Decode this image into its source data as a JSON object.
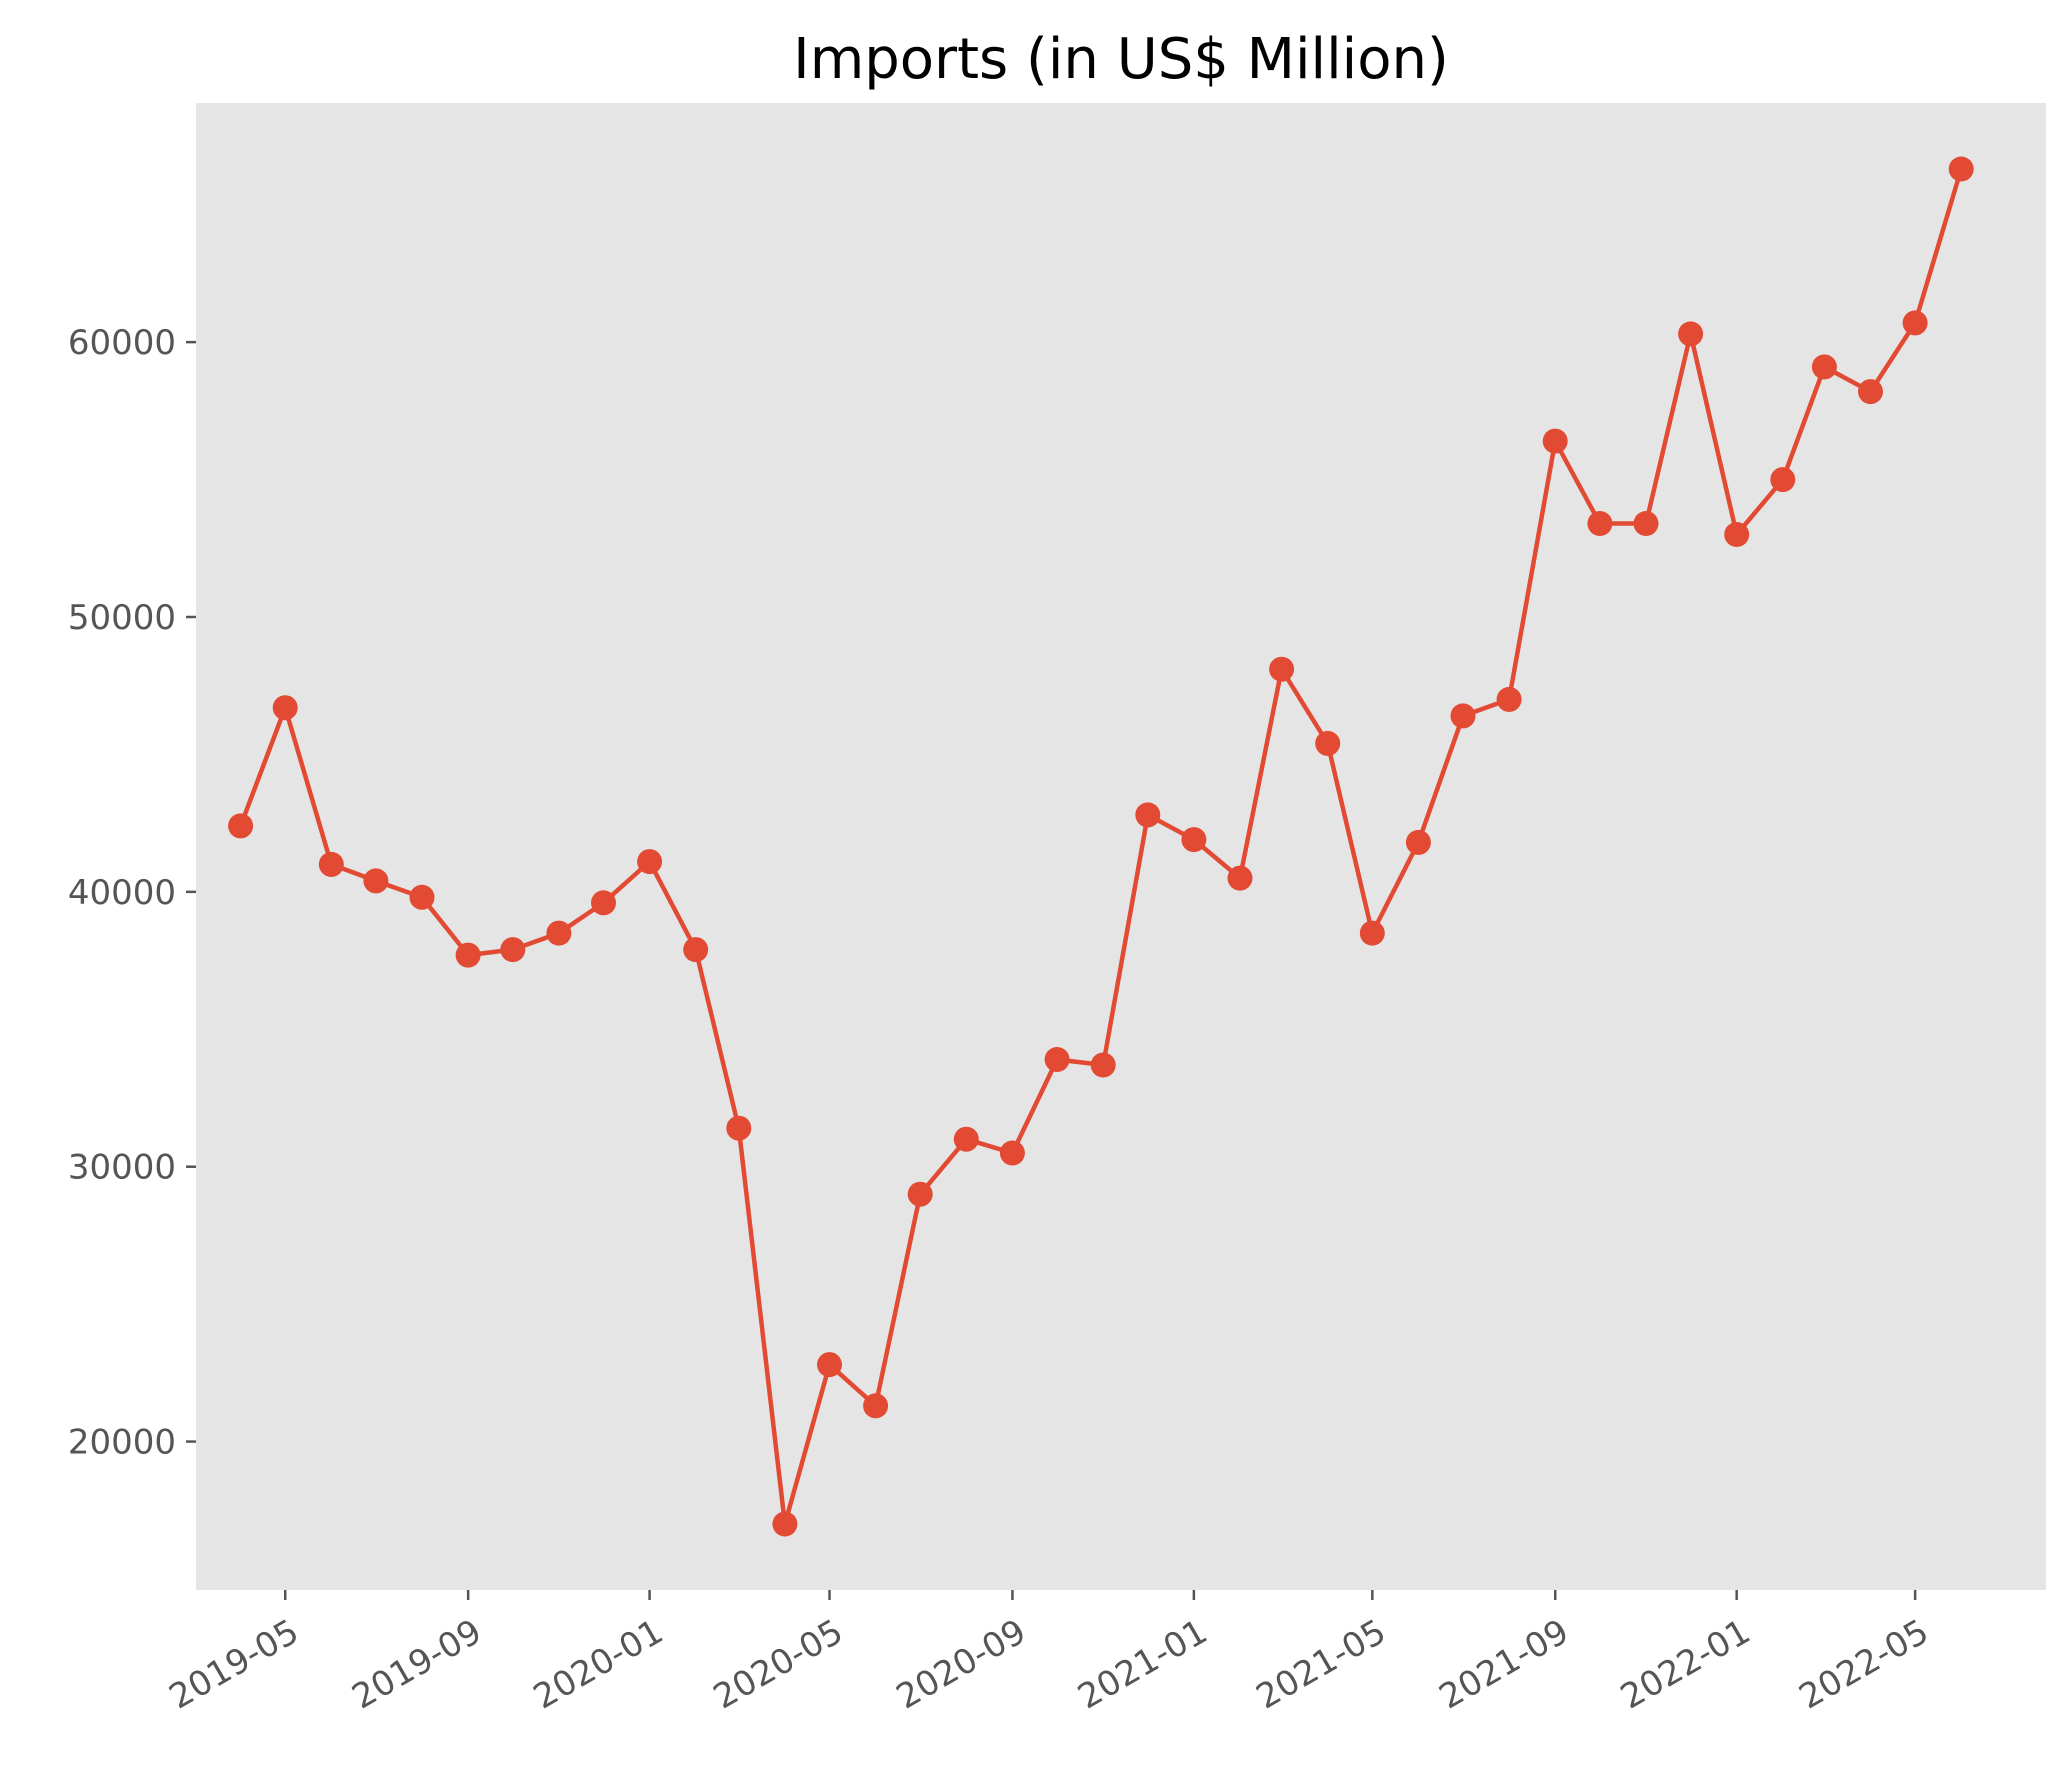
{
  "chart_data": {
    "type": "line",
    "title": "Imports (in US$ Million)",
    "xlabel": "",
    "ylabel": "",
    "x": [
      "2019-04",
      "2019-05",
      "2019-06",
      "2019-07",
      "2019-08",
      "2019-09",
      "2019-10",
      "2019-11",
      "2019-12",
      "2020-01",
      "2020-02",
      "2020-03",
      "2020-04",
      "2020-05",
      "2020-06",
      "2020-07",
      "2020-08",
      "2020-09",
      "2020-10",
      "2020-11",
      "2020-12",
      "2021-01",
      "2021-02",
      "2021-03",
      "2021-04",
      "2021-05",
      "2021-06",
      "2021-07",
      "2021-08",
      "2021-09",
      "2021-10",
      "2021-11",
      "2021-12",
      "2022-01",
      "2022-02",
      "2022-03",
      "2022-04",
      "2022-05",
      "2022-06"
    ],
    "series": [
      {
        "values": [
          42400,
          46700,
          41000,
          40400,
          39800,
          37700,
          37900,
          38500,
          39600,
          41100,
          37900,
          31400,
          17000,
          22800,
          21300,
          29000,
          31000,
          30500,
          33900,
          33700,
          42800,
          41900,
          40500,
          48100,
          45400,
          38500,
          41800,
          46400,
          47000,
          56400,
          53400,
          53400,
          60300,
          53000,
          55000,
          59100,
          58200,
          60700,
          66300
        ],
        "color": "#E24A33"
      }
    ],
    "x_ticks": [
      "2019-05",
      "2019-09",
      "2020-01",
      "2020-05",
      "2020-09",
      "2021-01",
      "2021-05",
      "2021-09",
      "2022-01",
      "2022-05"
    ],
    "y_ticks": [
      20000,
      30000,
      40000,
      50000,
      60000
    ],
    "ylim": [
      14600,
      68700
    ],
    "xlim": [
      "2019-03-02",
      "2022-07-28"
    ],
    "grid": false,
    "legend": false,
    "background_color": "#E5E5E5",
    "marker": "circle"
  }
}
